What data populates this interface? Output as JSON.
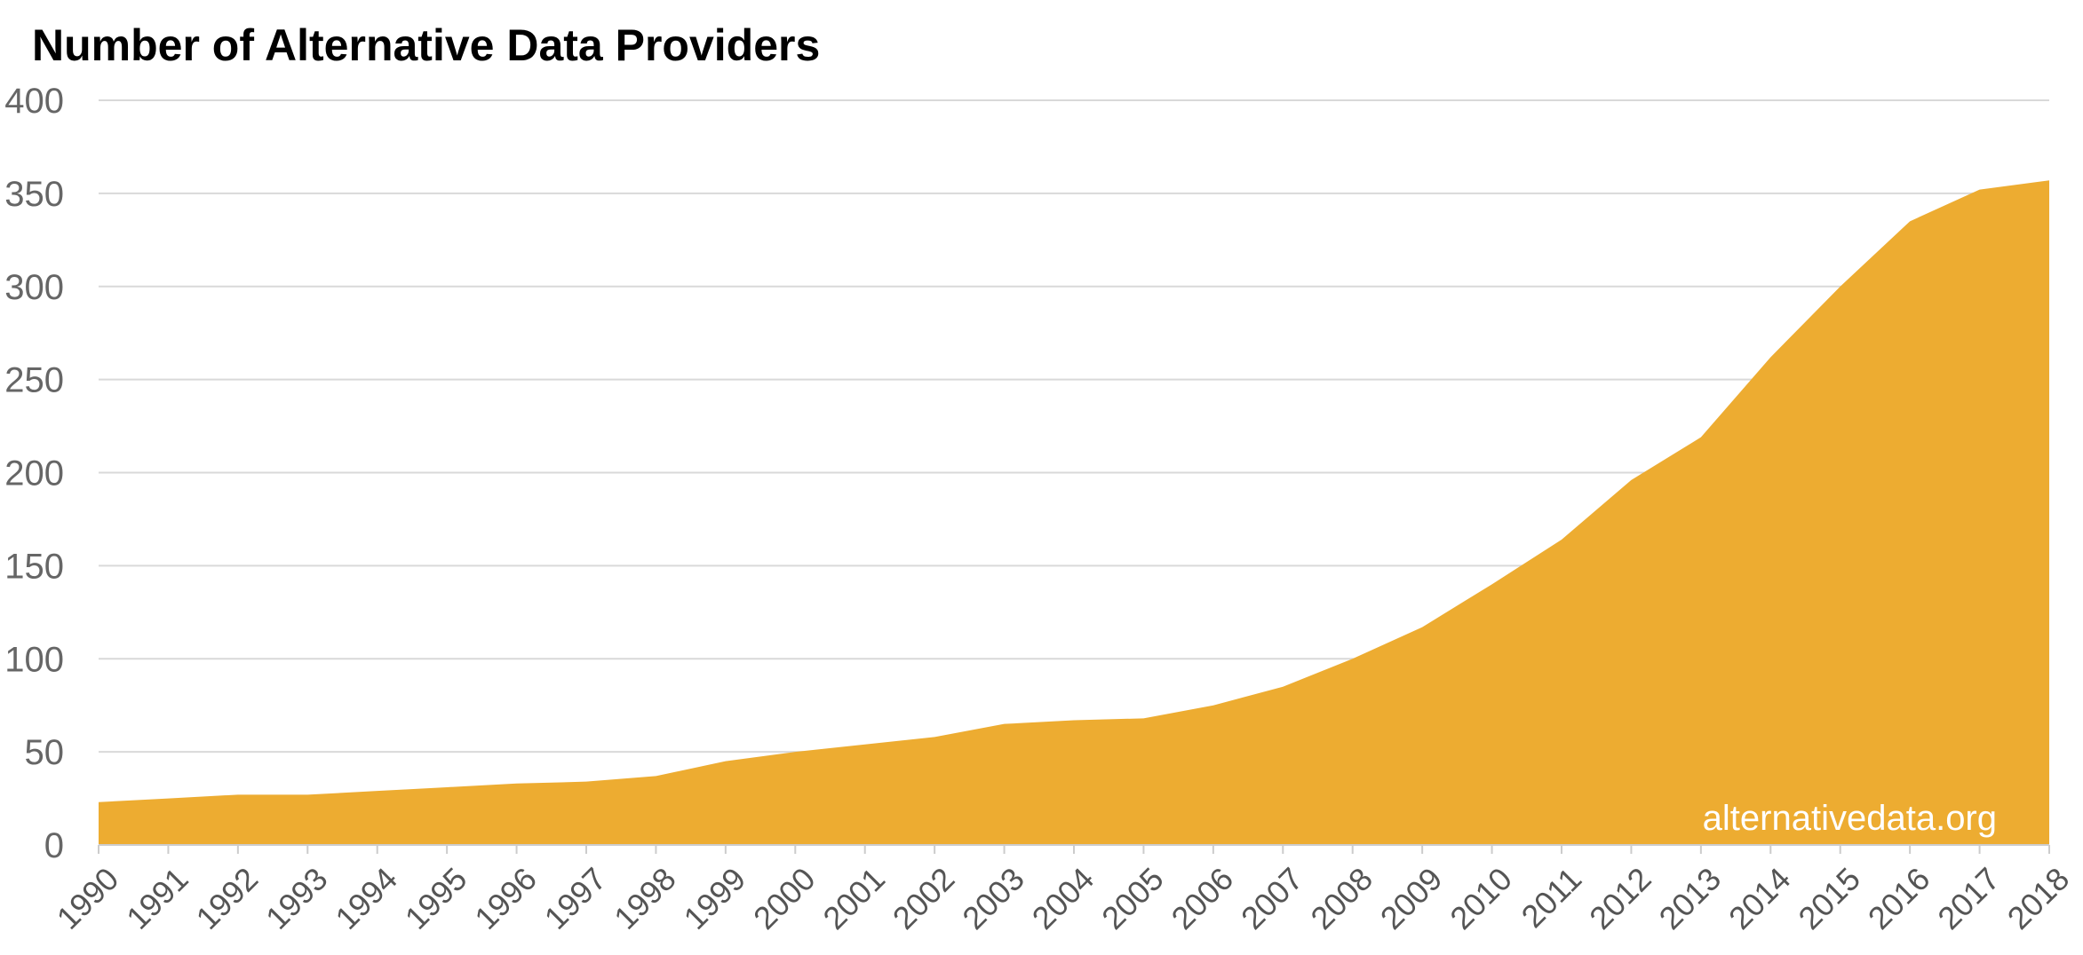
{
  "chart_data": {
    "type": "area",
    "title": "Number of Alternative Data Providers",
    "xlabel": "",
    "ylabel": "",
    "x": [
      "1990",
      "1991",
      "1992",
      "1993",
      "1994",
      "1995",
      "1996",
      "1997",
      "1998",
      "1999",
      "2000",
      "2001",
      "2002",
      "2003",
      "2004",
      "2005",
      "2006",
      "2007",
      "2008",
      "2009",
      "2010",
      "2011",
      "2012",
      "2013",
      "2014",
      "2015",
      "2016",
      "2017",
      "2018"
    ],
    "series": [
      {
        "name": "Alternative Data Providers",
        "values": [
          23,
          25,
          27,
          27,
          29,
          31,
          33,
          34,
          37,
          45,
          50,
          54,
          58,
          65,
          67,
          68,
          75,
          85,
          100,
          117,
          140,
          164,
          196,
          219,
          262,
          300,
          335,
          352,
          357
        ]
      }
    ],
    "ylim": [
      0,
      400
    ],
    "yticks": [
      0,
      50,
      100,
      150,
      200,
      250,
      300,
      350,
      400
    ],
    "grid": true,
    "annotation": "alternativedata.org",
    "colors": {
      "area": "#EDAC31",
      "grid": "#d9d9d9",
      "axis": "#cccccc"
    }
  }
}
